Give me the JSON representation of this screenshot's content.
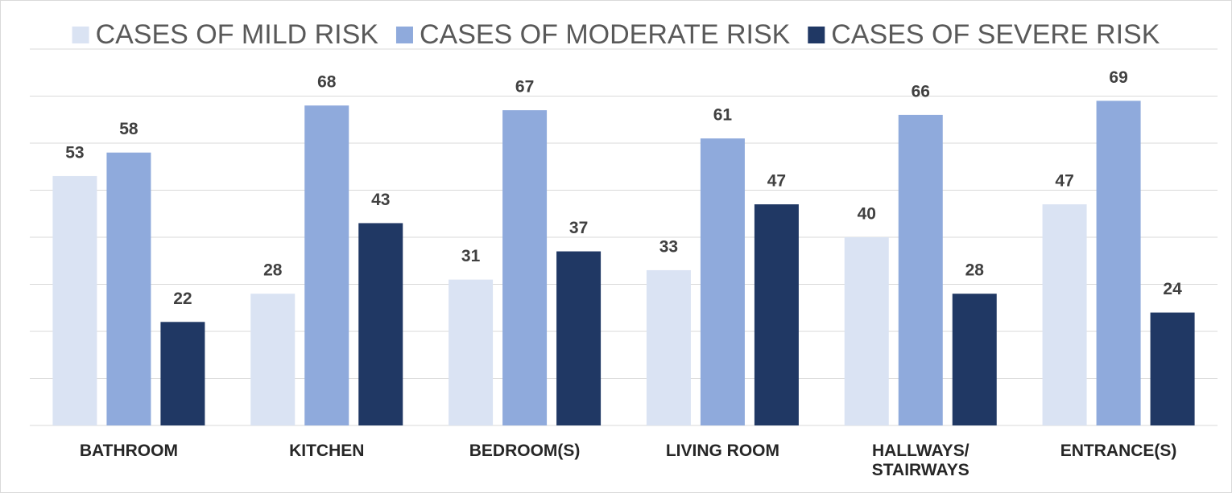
{
  "chart_data": {
    "type": "bar",
    "categories": [
      "BATHROOM",
      "KITCHEN",
      "BEDROOM(S)",
      "LIVING ROOM",
      "HALLWAYS/\nSTAIRWAYS",
      "ENTRANCE(S)"
    ],
    "series": [
      {
        "name": "CASES OF MILD RISK",
        "color": "#dae3f3",
        "values": [
          53,
          28,
          31,
          33,
          40,
          47
        ]
      },
      {
        "name": "CASES OF MODERATE RISK",
        "color": "#8faadc",
        "values": [
          58,
          68,
          67,
          61,
          66,
          69
        ]
      },
      {
        "name": "CASES OF SEVERE RISK",
        "color": "#203864",
        "values": [
          22,
          43,
          37,
          47,
          28,
          24
        ]
      }
    ],
    "ylim": [
      0,
      80
    ],
    "yticks": [
      0,
      10,
      20,
      30,
      40,
      50,
      60,
      70,
      80
    ],
    "grid": true,
    "legend": "top"
  }
}
